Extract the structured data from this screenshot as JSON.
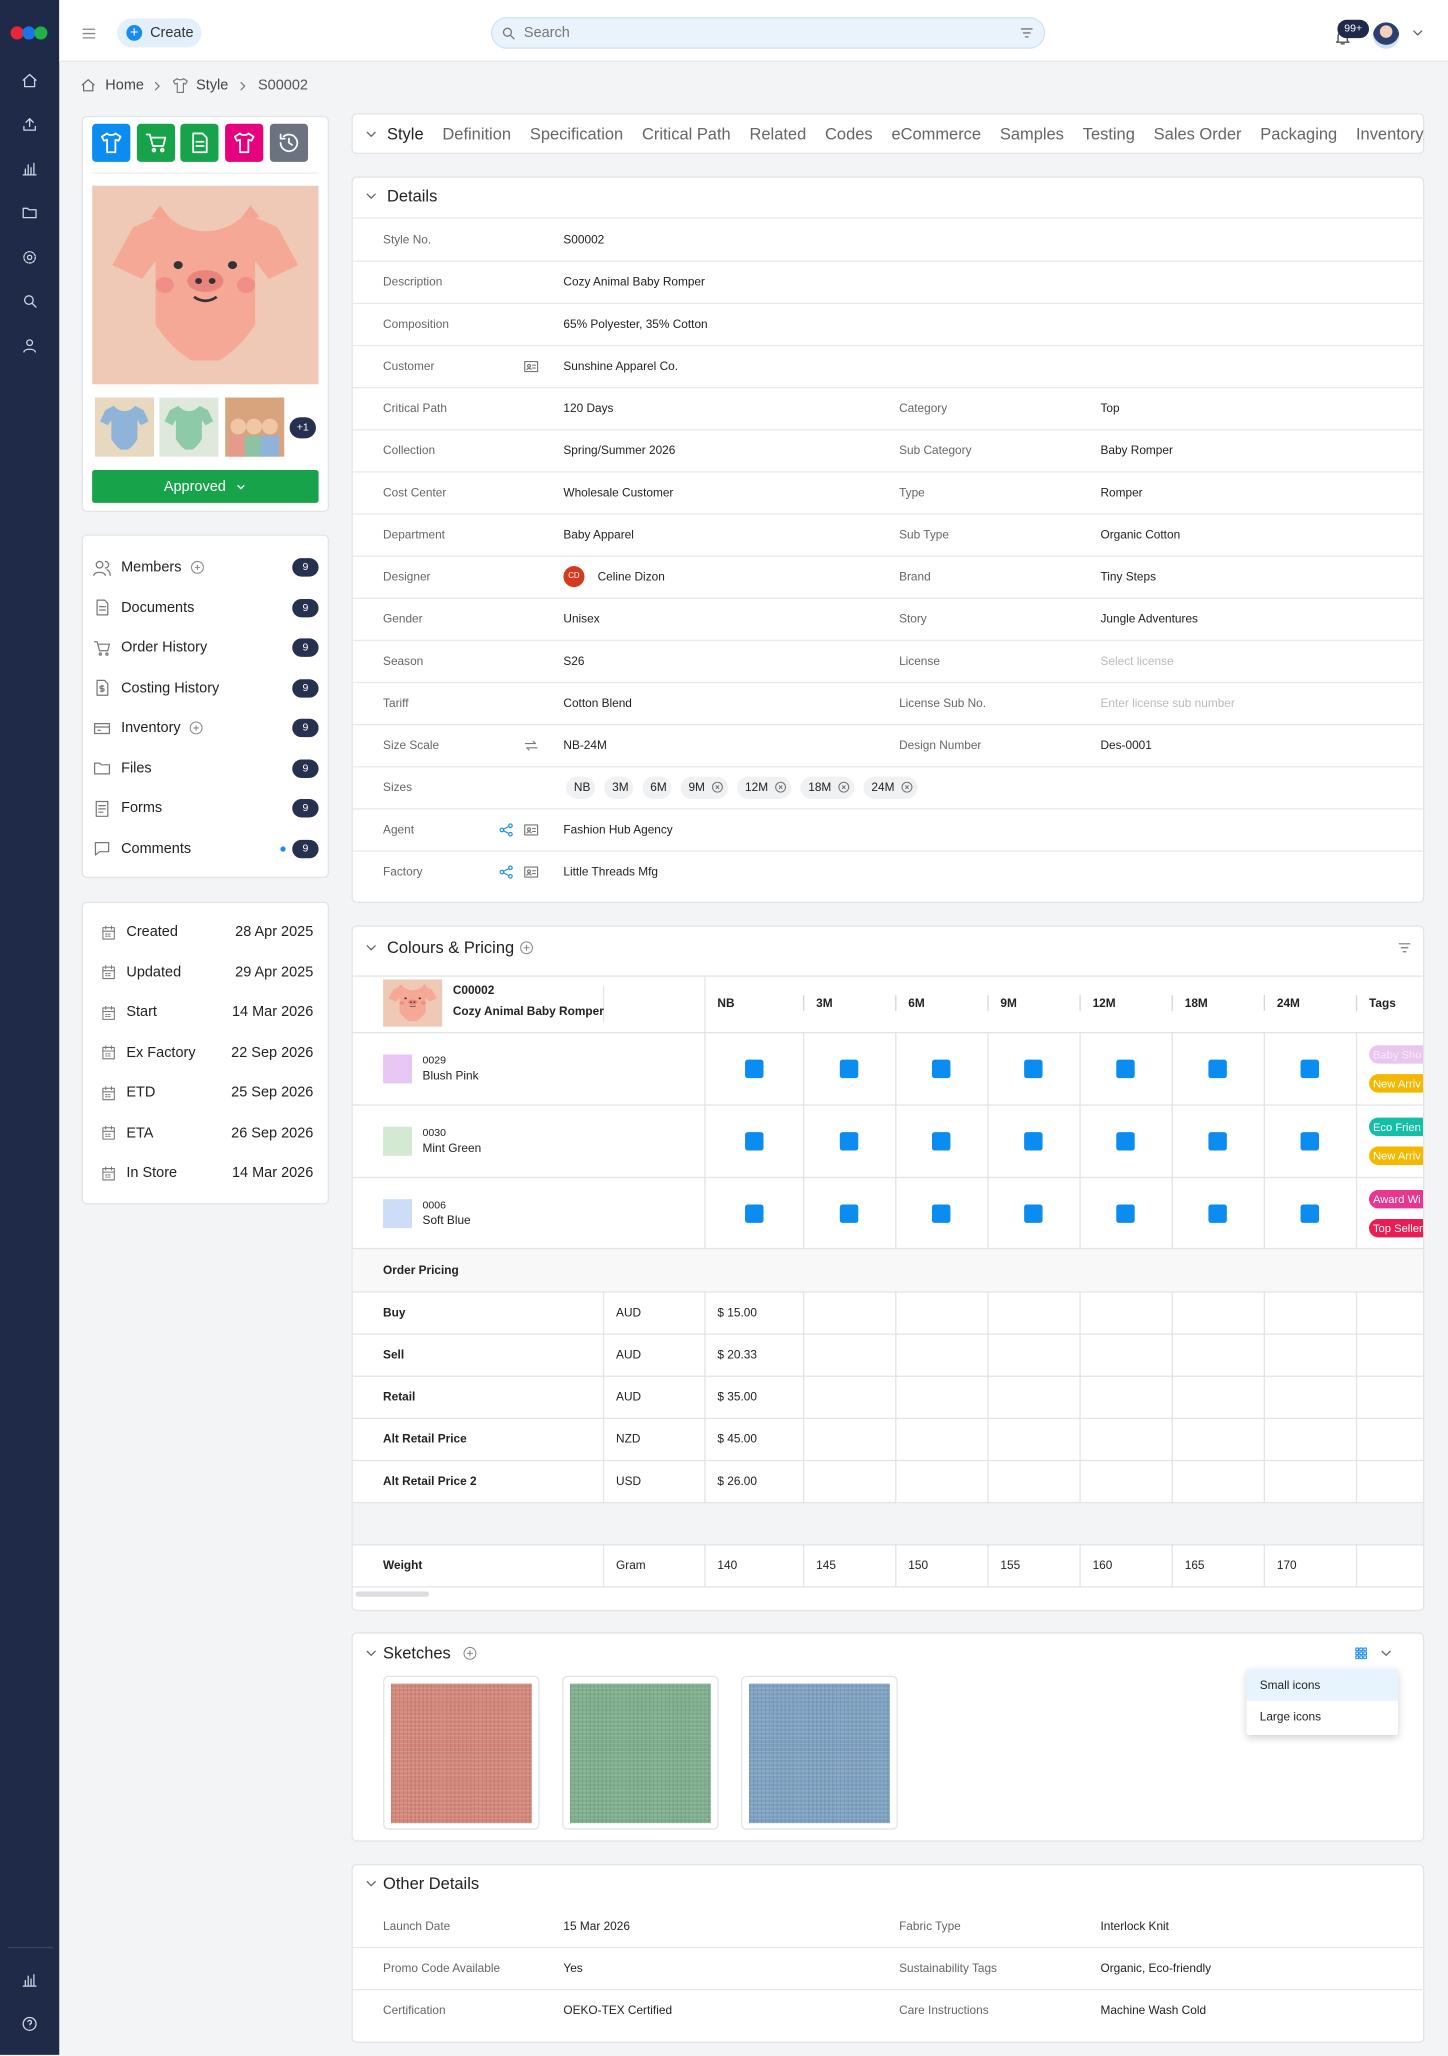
{
  "topbar": {
    "create": "Create",
    "search": "Search",
    "notifications": "99+"
  },
  "breadcrumb": [
    "Home",
    "Style",
    "S00002"
  ],
  "style_card": {
    "more_images": "+1",
    "status": "Approved"
  },
  "links": [
    {
      "label": "Members",
      "count": 9,
      "add": true
    },
    {
      "label": "Documents",
      "count": 9
    },
    {
      "label": "Order History",
      "count": 9
    },
    {
      "label": "Costing History",
      "count": 9
    },
    {
      "label": "Inventory",
      "count": 9,
      "add": true
    },
    {
      "label": "Files",
      "count": 9
    },
    {
      "label": "Forms",
      "count": 9
    },
    {
      "label": "Comments",
      "count": 9,
      "unread": true
    }
  ],
  "dates": [
    {
      "label": "Created",
      "value": "28 Apr 2025"
    },
    {
      "label": "Updated",
      "value": "29 Apr 2025"
    },
    {
      "label": "Start",
      "value": "14 Mar 2026"
    },
    {
      "label": "Ex Factory",
      "value": "22 Sep 2026"
    },
    {
      "label": "ETD",
      "value": "25 Sep 2026"
    },
    {
      "label": "ETA",
      "value": "26 Sep 2026"
    },
    {
      "label": "In Store",
      "value": "14 Mar 2026"
    }
  ],
  "tabs": [
    "Style",
    "Definition",
    "Specification",
    "Critical Path",
    "Related",
    "Codes",
    "eCommerce",
    "Samples",
    "Testing",
    "Sales Order",
    "Packaging",
    "Inventory"
  ],
  "details": {
    "title": "Details",
    "rows": [
      [
        {
          "label": "Style No.",
          "value": "S00002"
        }
      ],
      [
        {
          "label": "Description",
          "value": "Cozy Animal Baby Romper"
        }
      ],
      [
        {
          "label": "Composition",
          "value": "65% Polyester, 35% Cotton"
        }
      ],
      [
        {
          "label": "Customer",
          "value": "Sunshine Apparel Co."
        }
      ],
      [
        {
          "label": "Critical Path",
          "value": "120 Days"
        },
        {
          "label": "Category",
          "value": "Top"
        }
      ],
      [
        {
          "label": "Collection",
          "value": "Spring/Summer 2026"
        },
        {
          "label": "Sub Category",
          "value": "Baby Romper"
        }
      ],
      [
        {
          "label": "Cost Center",
          "value": "Wholesale Customer"
        },
        {
          "label": "Type",
          "value": "Romper"
        }
      ],
      [
        {
          "label": "Department",
          "value": "Baby Apparel"
        },
        {
          "label": "Sub Type",
          "value": "Organic Cotton"
        }
      ],
      [
        {
          "label": "Designer",
          "value": "Celine Dizon",
          "avatar": "CD"
        },
        {
          "label": "Brand",
          "value": "Tiny Steps"
        }
      ],
      [
        {
          "label": "Gender",
          "value": "Unisex"
        },
        {
          "label": "Story",
          "value": "Jungle Adventures"
        }
      ],
      [
        {
          "label": "Season",
          "value": "S26"
        },
        {
          "label": "License",
          "placeholder": "Select license"
        }
      ],
      [
        {
          "label": "Tariff",
          "value": "Cotton Blend"
        },
        {
          "label": "License Sub No.",
          "placeholder": "Enter license sub number"
        }
      ],
      [
        {
          "label": "Size Scale",
          "value": "NB-24M"
        },
        {
          "label": "Design Number",
          "value": "Des-0001"
        }
      ],
      [
        {
          "label": "Sizes",
          "sizes": [
            {
              "label": "NB"
            },
            {
              "label": "3M"
            },
            {
              "label": "6M"
            },
            {
              "label": "9M",
              "removable": true
            },
            {
              "label": "12M",
              "removable": true
            },
            {
              "label": "18M",
              "removable": true
            },
            {
              "label": "24M",
              "removable": true
            }
          ]
        }
      ],
      [
        {
          "label": "Agent",
          "value": "Fashion Hub Agency"
        }
      ],
      [
        {
          "label": "Factory",
          "value": "Little Threads Mfg"
        }
      ]
    ]
  },
  "colours": {
    "title": "Colours & Pricing",
    "style_code": "C00002",
    "style_name": "Cozy Animal Baby Romper",
    "sizes": [
      "NB",
      "3M",
      "6M",
      "9M",
      "12M",
      "18M",
      "24M"
    ],
    "tags_header": "Tags",
    "rows": [
      {
        "code": "0029",
        "name": "Blush Pink",
        "color": "#e9c7f5",
        "tags": [
          {
            "text": "Baby Sho",
            "color": "#e8c6ef"
          },
          {
            "text": "New Arriv",
            "color": "#f5b800"
          }
        ]
      },
      {
        "code": "0030",
        "name": "Mint Green",
        "color": "#d3e9d1",
        "tags": [
          {
            "text": "Eco Frien",
            "color": "#13bfa6"
          },
          {
            "text": "New Arriv",
            "color": "#f5b800"
          }
        ]
      },
      {
        "code": "0006",
        "name": "Soft Blue",
        "color": "#cddcf7",
        "tags": [
          {
            "text": "Award Wi",
            "color": "#e8358f"
          },
          {
            "text": "Top Seller",
            "color": "#ea1c52"
          }
        ]
      }
    ],
    "pricing_title": "Order Pricing",
    "pricing": [
      {
        "label": "Buy",
        "currency": "AUD",
        "price": "$ 15.00"
      },
      {
        "label": "Sell",
        "currency": "AUD",
        "price": "$ 20.33"
      },
      {
        "label": "Retail",
        "currency": "AUD",
        "price": "$ 35.00"
      },
      {
        "label": "Alt Retail Price",
        "currency": "NZD",
        "price": "$ 45.00"
      },
      {
        "label": "Alt Retail Price 2",
        "currency": "USD",
        "price": "$ 26.00"
      }
    ],
    "weight": {
      "label": "Weight",
      "unit": "Gram",
      "values": [
        140,
        145,
        150,
        155,
        160,
        165,
        170
      ]
    }
  },
  "sketches": {
    "title": "Sketches",
    "items": [
      {
        "color": "#d4877a"
      },
      {
        "color": "#7faf8e"
      },
      {
        "color": "#7fa2c2"
      }
    ],
    "view_options": [
      "Small icons",
      "Large icons"
    ]
  },
  "other_details": {
    "title": "Other Details",
    "rows": [
      [
        {
          "label": "Launch Date",
          "value": "15 Mar 2026"
        },
        {
          "label": "Fabric Type",
          "value": "Interlock Knit"
        }
      ],
      [
        {
          "label": "Promo Code Available",
          "value": "Yes"
        },
        {
          "label": "Sustainability Tags",
          "value": "Organic, Eco-friendly"
        }
      ],
      [
        {
          "label": "Certification",
          "value": "OEKO-TEX Certified"
        },
        {
          "label": "Care Instructions",
          "value": "Machine Wash Cold"
        }
      ]
    ]
  }
}
